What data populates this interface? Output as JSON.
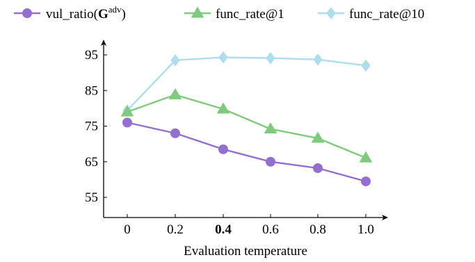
{
  "chart_data": {
    "type": "line",
    "x": [
      0,
      0.2,
      0.4,
      0.6,
      0.8,
      1.0
    ],
    "x_tick_labels": [
      "0",
      "0.2",
      "0.4",
      "0.6",
      "0.8",
      "1.0"
    ],
    "x_tick_bold": "0.4",
    "y_ticks": [
      55,
      65,
      75,
      85,
      95
    ],
    "ylim": [
      48,
      102
    ],
    "xlabel": "Evaluation temperature",
    "ylabel": "",
    "legend_position": "top",
    "grid": false,
    "series": [
      {
        "name": "vul_ratio(G",
        "name_superscript": "adv",
        "name_suffix": ")",
        "marker": "circle",
        "color": "#9370cf",
        "values": [
          76.0,
          73.0,
          68.5,
          65.0,
          63.2,
          59.5
        ]
      },
      {
        "name": "func_rate@1",
        "marker": "triangle",
        "color": "#7fca7c",
        "values": [
          79.0,
          83.8,
          79.8,
          74.2,
          71.6,
          66.1
        ]
      },
      {
        "name": "func_rate@10",
        "marker": "diamond",
        "color": "#aedded",
        "values": [
          79.4,
          93.5,
          94.3,
          94.1,
          93.7,
          92.0
        ]
      }
    ]
  }
}
